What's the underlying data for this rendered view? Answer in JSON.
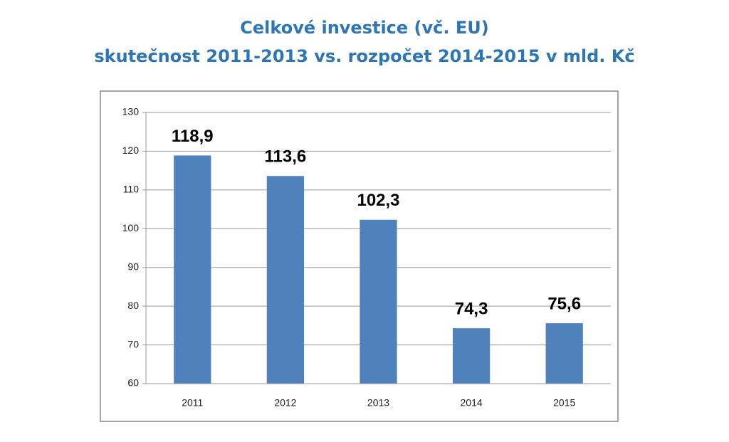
{
  "chart_data": {
    "type": "bar",
    "title": "Celkové investice (vč. EU)",
    "subtitle": "skutečnost 2011-2013 vs. rozpočet 2014-2015 v mld. Kč",
    "categories": [
      "2011",
      "2012",
      "2013",
      "2014",
      "2015"
    ],
    "values": [
      118.9,
      113.6,
      102.3,
      74.3,
      75.6
    ],
    "value_labels": [
      "118,9",
      "113,6",
      "102,3",
      "74,3",
      "75,6"
    ],
    "color": "#4f81bd",
    "ylim": [
      60,
      130
    ],
    "yticks": [
      60,
      70,
      80,
      90,
      100,
      110,
      120,
      130
    ],
    "grid": true
  }
}
